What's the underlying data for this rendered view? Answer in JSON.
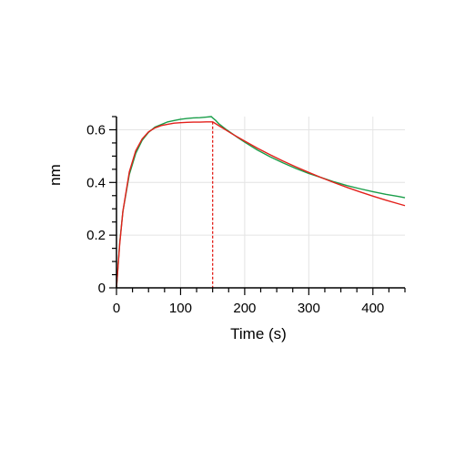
{
  "chart_data": {
    "type": "line",
    "title": "",
    "xlabel": "Time (s)",
    "ylabel": "nm",
    "xlim": [
      0,
      450
    ],
    "ylim": [
      0,
      0.65
    ],
    "xticks": [
      0,
      100,
      200,
      300,
      400
    ],
    "xtick_labels": [
      "0",
      "100",
      "200",
      "300",
      "400"
    ],
    "yticks": [
      0,
      0.2,
      0.4,
      0.6
    ],
    "ytick_labels": [
      "0",
      "0.2",
      "0.4",
      "0.6"
    ],
    "grid": true,
    "marker_line_x": 150,
    "series": [
      {
        "color": "#1a9e4a",
        "x": [
          0,
          5,
          10,
          20,
          30,
          40,
          50,
          60,
          70,
          80,
          90,
          100,
          110,
          120,
          130,
          140,
          148,
          150,
          155,
          160,
          170,
          180,
          190,
          200,
          220,
          240,
          260,
          280,
          300,
          320,
          340,
          360,
          380,
          400,
          420,
          440,
          450
        ],
        "y": [
          0.0,
          0.17,
          0.29,
          0.43,
          0.51,
          0.56,
          0.59,
          0.61,
          0.62,
          0.63,
          0.635,
          0.64,
          0.643,
          0.645,
          0.646,
          0.648,
          0.65,
          0.645,
          0.635,
          0.622,
          0.603,
          0.586,
          0.569,
          0.553,
          0.523,
          0.497,
          0.474,
          0.453,
          0.434,
          0.418,
          0.402,
          0.388,
          0.376,
          0.365,
          0.355,
          0.347,
          0.342
        ]
      },
      {
        "color": "#e3201b",
        "x": [
          0,
          5,
          10,
          20,
          30,
          40,
          50,
          60,
          70,
          80,
          90,
          100,
          110,
          120,
          130,
          140,
          150,
          160,
          170,
          180,
          190,
          200,
          220,
          240,
          260,
          280,
          300,
          320,
          340,
          360,
          380,
          400,
          420,
          440,
          450
        ],
        "y": [
          0.0,
          0.165,
          0.29,
          0.44,
          0.52,
          0.565,
          0.592,
          0.607,
          0.616,
          0.621,
          0.625,
          0.627,
          0.628,
          0.629,
          0.629,
          0.63,
          0.63,
          0.615,
          0.6,
          0.585,
          0.571,
          0.557,
          0.53,
          0.505,
          0.481,
          0.459,
          0.438,
          0.418,
          0.399,
          0.381,
          0.364,
          0.348,
          0.333,
          0.319,
          0.312
        ]
      }
    ]
  }
}
